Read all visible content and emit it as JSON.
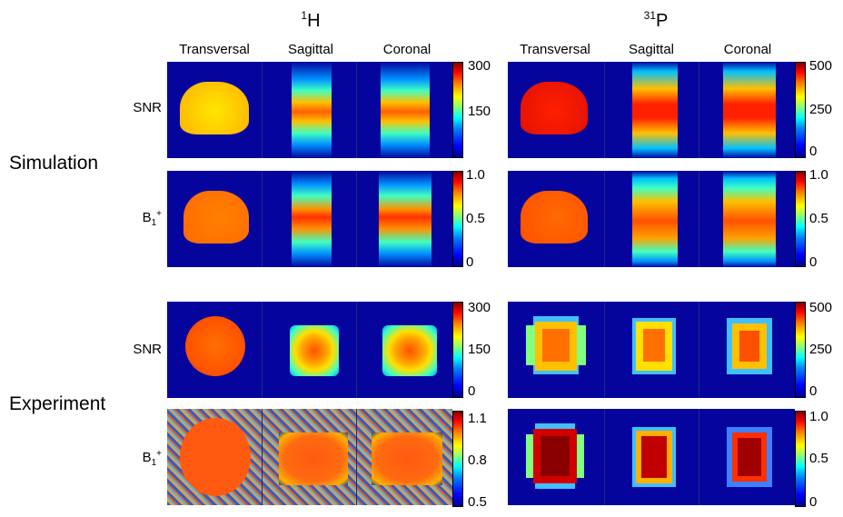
{
  "nuclei": {
    "h": {
      "mass": "1",
      "symbol": "H"
    },
    "p": {
      "mass": "31",
      "symbol": "P"
    }
  },
  "views": [
    "Transversal",
    "Sagittal",
    "Coronal"
  ],
  "sections": {
    "simulation": "Simulation",
    "experiment": "Experiment"
  },
  "row_labels": {
    "snr": "SNR",
    "b1_base": "B",
    "b1_sub": "1",
    "b1_sup": "+"
  },
  "colorbars": {
    "sim_h_snr": [
      "300",
      "150"
    ],
    "sim_h_b1": [
      "1.0",
      "0.5",
      "0"
    ],
    "sim_p_snr": [
      "500",
      "250",
      "0"
    ],
    "sim_p_b1": [
      "1.0",
      "0.5",
      "0"
    ],
    "exp_h_snr": [
      "300",
      "150",
      "0"
    ],
    "exp_h_b1": [
      "1.1",
      "0.8",
      "0.5"
    ],
    "exp_p_snr": [
      "500",
      "250",
      "0"
    ],
    "exp_p_b1": [
      "1.0",
      "0.5",
      "0"
    ]
  },
  "colormap": {
    "low": "#00008f",
    "mid": "#00ffff",
    "high": "#800000",
    "background": "#05059e"
  }
}
